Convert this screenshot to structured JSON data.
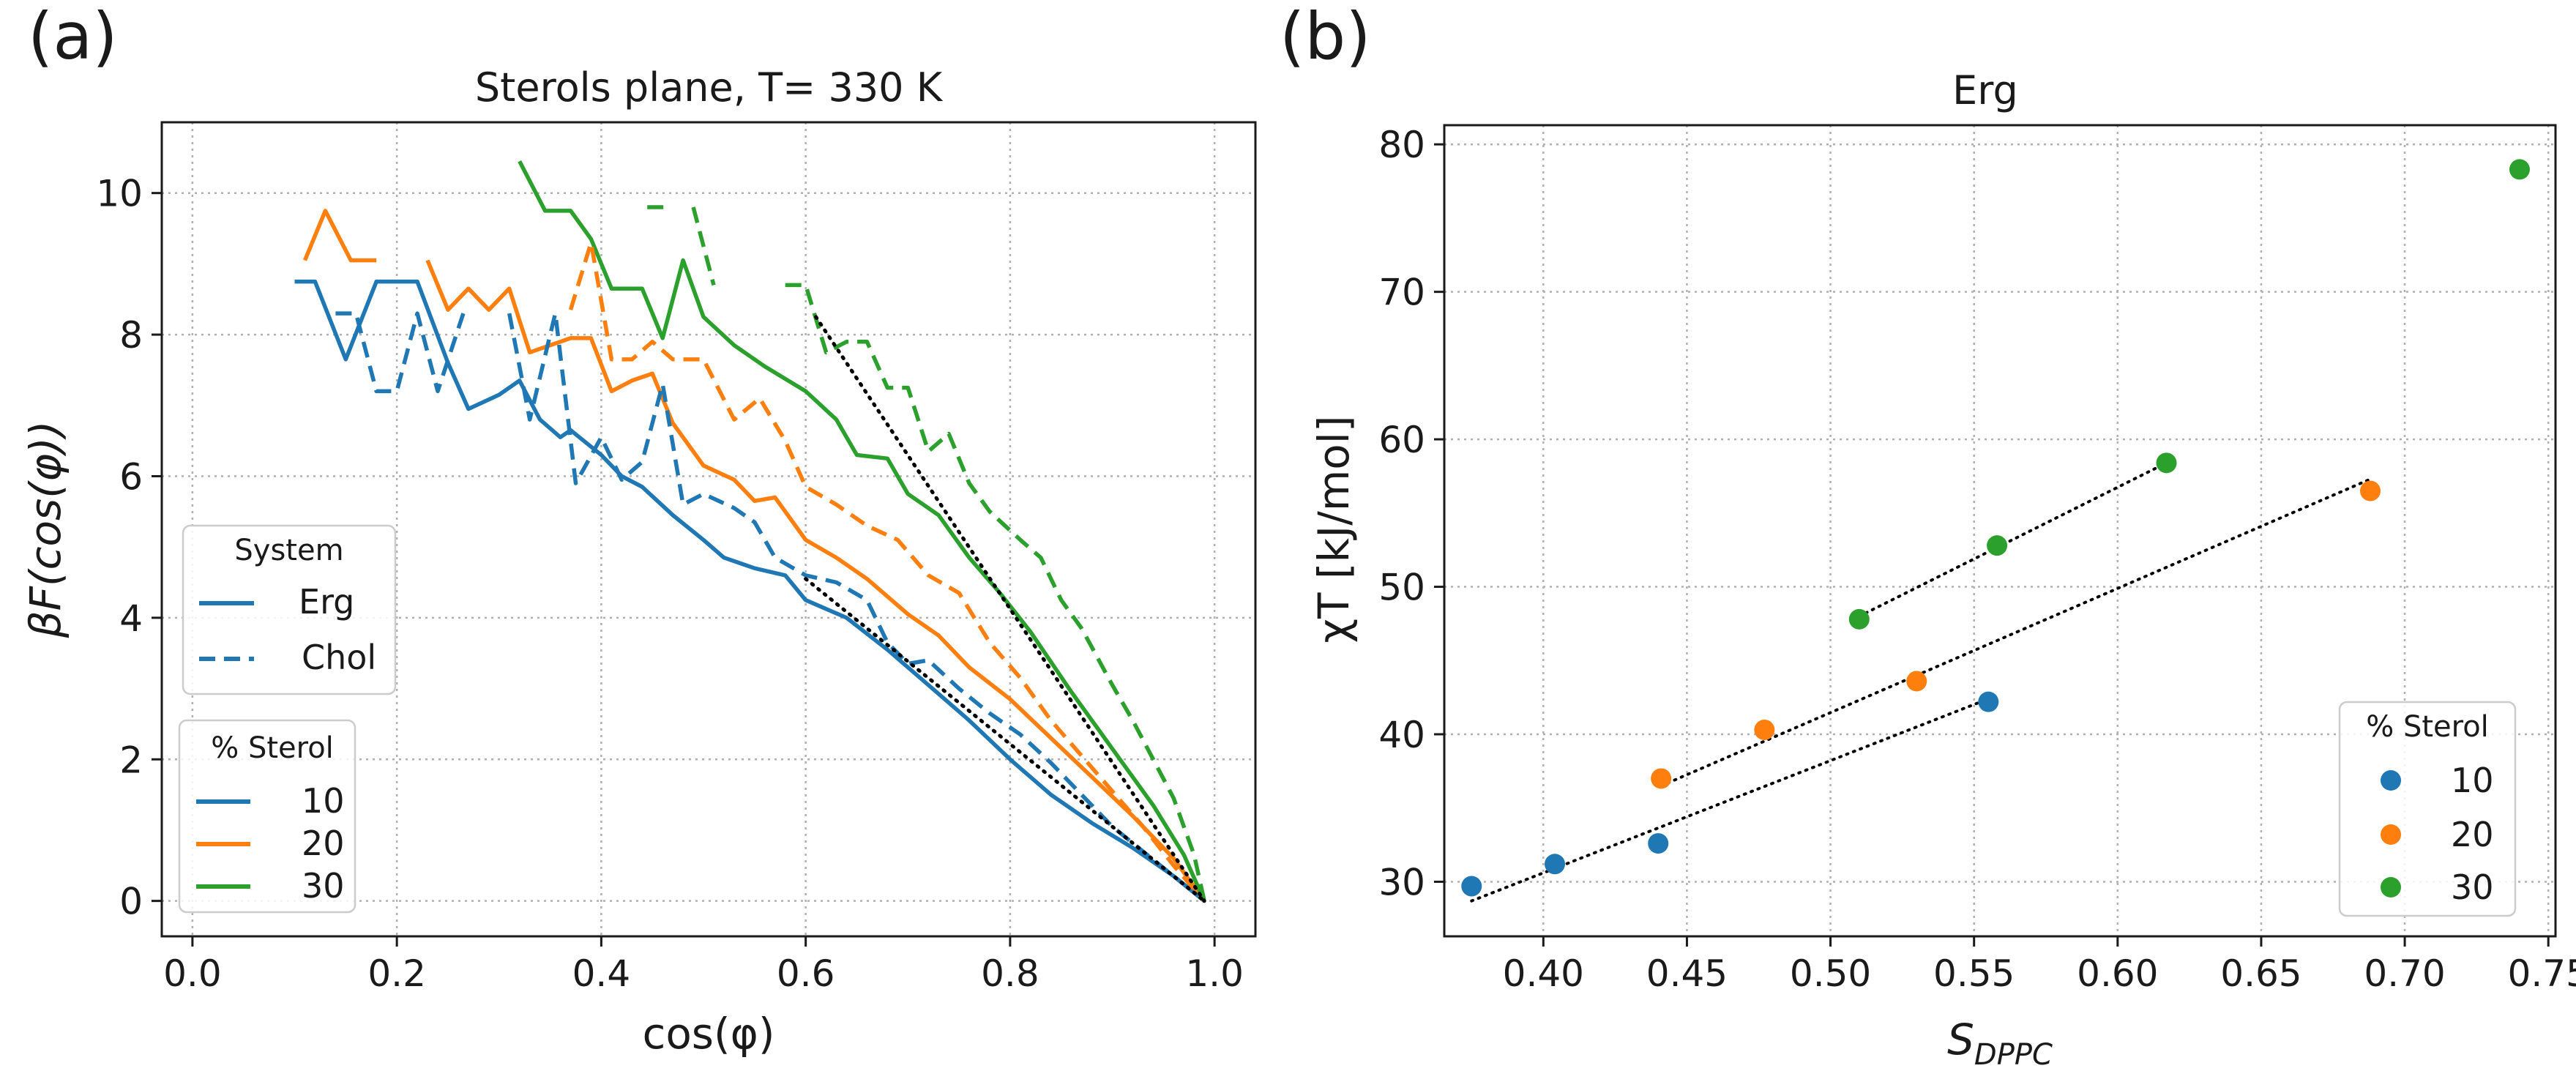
{
  "chart_data": [
    {
      "panel": "(a)",
      "type": "line",
      "title": "Sterols plane, T= 330 K",
      "xlabel": "cos(φ)",
      "ylabel": "βF(cos(φ))",
      "xlim": [
        -0.03,
        1.04
      ],
      "ylim": [
        -0.5,
        11.0
      ],
      "xticks": [
        0.0,
        0.2,
        0.4,
        0.6,
        0.8,
        1.0
      ],
      "xtick_labels": [
        "0.0",
        "0.2",
        "0.4",
        "0.6",
        "0.8",
        "1.0"
      ],
      "yticks": [
        0,
        2,
        4,
        6,
        8,
        10
      ],
      "ytick_labels": [
        "0",
        "2",
        "4",
        "6",
        "8",
        "10"
      ],
      "grid": true,
      "series": [
        {
          "name": "Erg 10",
          "system": "Erg",
          "sterol": "10",
          "color": "#1f77b4",
          "style": "solid",
          "segments": [
            [
              [
                0.1,
                8.75
              ],
              [
                0.12,
                8.75
              ],
              [
                0.15,
                7.65
              ],
              [
                0.18,
                8.75
              ],
              [
                0.22,
                8.75
              ],
              [
                0.25,
                7.6
              ],
              [
                0.27,
                6.95
              ],
              [
                0.3,
                7.15
              ],
              [
                0.32,
                7.35
              ],
              [
                0.34,
                6.8
              ],
              [
                0.36,
                6.55
              ],
              [
                0.37,
                6.65
              ],
              [
                0.4,
                6.3
              ],
              [
                0.42,
                6.0
              ],
              [
                0.44,
                5.85
              ],
              [
                0.47,
                5.45
              ],
              [
                0.5,
                5.1
              ],
              [
                0.52,
                4.85
              ],
              [
                0.55,
                4.7
              ],
              [
                0.58,
                4.6
              ],
              [
                0.6,
                4.25
              ],
              [
                0.64,
                4.0
              ],
              [
                0.68,
                3.55
              ],
              [
                0.72,
                3.05
              ],
              [
                0.76,
                2.55
              ],
              [
                0.8,
                2.0
              ],
              [
                0.84,
                1.5
              ],
              [
                0.88,
                1.1
              ],
              [
                0.92,
                0.75
              ],
              [
                0.96,
                0.35
              ],
              [
                0.99,
                0.0
              ]
            ]
          ]
        },
        {
          "name": "Erg 20",
          "system": "Erg",
          "sterol": "20",
          "color": "#ff7f0e",
          "style": "solid",
          "segments": [
            [
              [
                0.11,
                9.05
              ],
              [
                0.13,
                9.75
              ],
              [
                0.155,
                9.05
              ],
              [
                0.18,
                9.05
              ]
            ],
            [
              [
                0.23,
                9.05
              ],
              [
                0.25,
                8.35
              ],
              [
                0.27,
                8.65
              ],
              [
                0.29,
                8.35
              ],
              [
                0.31,
                8.65
              ],
              [
                0.33,
                7.75
              ],
              [
                0.35,
                7.85
              ],
              [
                0.37,
                7.95
              ],
              [
                0.39,
                7.95
              ],
              [
                0.41,
                7.2
              ],
              [
                0.43,
                7.35
              ],
              [
                0.45,
                7.45
              ],
              [
                0.47,
                6.75
              ],
              [
                0.5,
                6.15
              ],
              [
                0.53,
                5.95
              ],
              [
                0.55,
                5.65
              ],
              [
                0.57,
                5.7
              ],
              [
                0.6,
                5.1
              ],
              [
                0.63,
                4.85
              ],
              [
                0.66,
                4.55
              ],
              [
                0.7,
                4.05
              ],
              [
                0.73,
                3.75
              ],
              [
                0.76,
                3.3
              ],
              [
                0.8,
                2.85
              ],
              [
                0.84,
                2.3
              ],
              [
                0.88,
                1.75
              ],
              [
                0.92,
                1.2
              ],
              [
                0.96,
                0.6
              ],
              [
                0.99,
                0.0
              ]
            ]
          ]
        },
        {
          "name": "Erg 30",
          "system": "Erg",
          "sterol": "30",
          "color": "#2ca02c",
          "style": "solid",
          "segments": [
            [
              [
                0.32,
                10.45
              ],
              [
                0.345,
                9.75
              ],
              [
                0.37,
                9.75
              ],
              [
                0.39,
                9.35
              ],
              [
                0.41,
                8.65
              ],
              [
                0.44,
                8.65
              ],
              [
                0.46,
                7.95
              ],
              [
                0.48,
                9.05
              ],
              [
                0.5,
                8.25
              ],
              [
                0.53,
                7.85
              ],
              [
                0.56,
                7.55
              ],
              [
                0.6,
                7.2
              ],
              [
                0.63,
                6.8
              ],
              [
                0.65,
                6.3
              ],
              [
                0.68,
                6.25
              ],
              [
                0.7,
                5.75
              ],
              [
                0.73,
                5.45
              ],
              [
                0.76,
                4.85
              ],
              [
                0.79,
                4.35
              ],
              [
                0.82,
                3.8
              ],
              [
                0.86,
                2.95
              ],
              [
                0.9,
                2.15
              ],
              [
                0.94,
                1.35
              ],
              [
                0.97,
                0.65
              ],
              [
                0.99,
                0.0
              ]
            ]
          ]
        },
        {
          "name": "Chol 10",
          "system": "Chol",
          "sterol": "10",
          "color": "#1f77b4",
          "style": "dashed",
          "segments": [
            [
              [
                0.14,
                8.3
              ],
              [
                0.16,
                8.3
              ],
              [
                0.18,
                7.2
              ],
              [
                0.2,
                7.2
              ],
              [
                0.22,
                8.3
              ],
              [
                0.24,
                7.2
              ],
              [
                0.265,
                8.3
              ]
            ],
            [
              [
                0.31,
                8.3
              ],
              [
                0.33,
                6.8
              ],
              [
                0.355,
                8.3
              ],
              [
                0.375,
                5.9
              ],
              [
                0.4,
                6.55
              ],
              [
                0.42,
                5.95
              ],
              [
                0.44,
                6.2
              ],
              [
                0.46,
                7.3
              ],
              [
                0.48,
                5.6
              ],
              [
                0.5,
                5.75
              ],
              [
                0.53,
                5.55
              ],
              [
                0.55,
                5.35
              ],
              [
                0.57,
                4.85
              ],
              [
                0.6,
                4.6
              ],
              [
                0.63,
                4.5
              ],
              [
                0.66,
                4.25
              ],
              [
                0.68,
                3.65
              ],
              [
                0.7,
                3.35
              ],
              [
                0.72,
                3.4
              ],
              [
                0.75,
                3.0
              ],
              [
                0.78,
                2.65
              ],
              [
                0.81,
                2.35
              ],
              [
                0.84,
                1.95
              ],
              [
                0.87,
                1.5
              ],
              [
                0.9,
                1.05
              ],
              [
                0.93,
                0.7
              ],
              [
                0.96,
                0.35
              ],
              [
                0.99,
                0.0
              ]
            ]
          ]
        },
        {
          "name": "Chol 20",
          "system": "Chol",
          "sterol": "20",
          "color": "#ff7f0e",
          "style": "dashed",
          "segments": [
            [
              [
                0.37,
                8.35
              ],
              [
                0.39,
                9.3
              ],
              [
                0.41,
                7.65
              ],
              [
                0.43,
                7.65
              ],
              [
                0.45,
                7.9
              ],
              [
                0.47,
                7.65
              ],
              [
                0.5,
                7.65
              ],
              [
                0.53,
                6.8
              ],
              [
                0.555,
                7.1
              ],
              [
                0.58,
                6.5
              ],
              [
                0.6,
                5.85
              ],
              [
                0.63,
                5.6
              ],
              [
                0.66,
                5.3
              ],
              [
                0.69,
                5.1
              ],
              [
                0.72,
                4.6
              ],
              [
                0.75,
                4.35
              ],
              [
                0.78,
                3.65
              ],
              [
                0.81,
                3.15
              ],
              [
                0.84,
                2.55
              ],
              [
                0.87,
                2.05
              ],
              [
                0.9,
                1.55
              ],
              [
                0.93,
                1.05
              ],
              [
                0.96,
                0.5
              ],
              [
                0.99,
                0.0
              ]
            ]
          ]
        },
        {
          "name": "Chol 30",
          "system": "Chol",
          "sterol": "30",
          "color": "#2ca02c",
          "style": "dashed",
          "segments": [
            [
              [
                0.445,
                9.8
              ],
              [
                0.465,
                9.8
              ]
            ],
            [
              [
                0.49,
                9.8
              ],
              [
                0.51,
                8.7
              ]
            ],
            [
              [
                0.58,
                8.7
              ],
              [
                0.6,
                8.7
              ],
              [
                0.62,
                7.75
              ],
              [
                0.64,
                7.9
              ],
              [
                0.66,
                7.9
              ],
              [
                0.68,
                7.25
              ],
              [
                0.7,
                7.25
              ],
              [
                0.72,
                6.35
              ],
              [
                0.74,
                6.6
              ],
              [
                0.76,
                5.9
              ],
              [
                0.78,
                5.5
              ],
              [
                0.81,
                5.1
              ],
              [
                0.83,
                4.85
              ],
              [
                0.85,
                4.25
              ],
              [
                0.87,
                3.85
              ],
              [
                0.9,
                3.05
              ],
              [
                0.92,
                2.55
              ],
              [
                0.94,
                2.0
              ],
              [
                0.96,
                1.45
              ],
              [
                0.98,
                0.65
              ],
              [
                0.99,
                0.0
              ]
            ]
          ]
        },
        {
          "name": "fit-upper",
          "system": "fit",
          "sterol": "",
          "color": "#000000",
          "style": "dotted",
          "segments": [
            [
              [
                0.61,
                8.25
              ],
              [
                0.99,
                0.0
              ]
            ]
          ]
        },
        {
          "name": "fit-lower",
          "system": "fit",
          "sterol": "",
          "color": "#000000",
          "style": "dotted",
          "segments": [
            [
              [
                0.6,
                4.55
              ],
              [
                0.99,
                0.0
              ]
            ]
          ]
        }
      ],
      "legends": [
        {
          "title": "System",
          "entries": [
            {
              "label": "Erg",
              "style": "solid",
              "color": "#1f77b4"
            },
            {
              "label": "Chol",
              "style": "dashed",
              "color": "#1f77b4"
            }
          ]
        },
        {
          "title": "% Sterol",
          "entries": [
            {
              "label": "10",
              "style": "solid",
              "color": "#1f77b4"
            },
            {
              "label": "20",
              "style": "solid",
              "color": "#ff7f0e"
            },
            {
              "label": "30",
              "style": "solid",
              "color": "#2ca02c"
            }
          ]
        }
      ]
    },
    {
      "panel": "(b)",
      "type": "scatter",
      "title": "Erg",
      "xlabel": "S",
      "xlabel_sub": "DPPC",
      "ylabel": "χT [kJ/mol]",
      "xlim": [
        0.3655,
        0.7525
      ],
      "ylim": [
        26.3,
        81.3
      ],
      "xticks": [
        0.4,
        0.45,
        0.5,
        0.55,
        0.6,
        0.65,
        0.7,
        0.75
      ],
      "xtick_labels": [
        "0.40",
        "0.45",
        "0.50",
        "0.55",
        "0.60",
        "0.65",
        "0.70",
        "0.75"
      ],
      "yticks": [
        30,
        40,
        50,
        60,
        70,
        80
      ],
      "ytick_labels": [
        "30",
        "40",
        "50",
        "60",
        "70",
        "80"
      ],
      "grid": true,
      "series": [
        {
          "name": "10",
          "color": "#1f77b4",
          "points": [
            [
              0.375,
              29.7
            ],
            [
              0.404,
              31.2
            ],
            [
              0.44,
              32.6
            ],
            [
              0.555,
              42.2
            ]
          ]
        },
        {
          "name": "20",
          "color": "#ff7f0e",
          "points": [
            [
              0.441,
              37.0
            ],
            [
              0.477,
              40.3
            ],
            [
              0.53,
              43.6
            ],
            [
              0.688,
              56.5
            ]
          ]
        },
        {
          "name": "30",
          "color": "#2ca02c",
          "points": [
            [
              0.51,
              47.8
            ],
            [
              0.558,
              52.8
            ],
            [
              0.617,
              58.4
            ],
            [
              0.74,
              78.3
            ]
          ]
        }
      ],
      "fits": [
        {
          "name": "fit-10",
          "color": "#000000",
          "points": [
            [
              0.375,
              28.7
            ],
            [
              0.555,
              42.4
            ]
          ]
        },
        {
          "name": "fit-20",
          "color": "#000000",
          "points": [
            [
              0.441,
              36.5
            ],
            [
              0.688,
              57.3
            ]
          ]
        },
        {
          "name": "fit-30",
          "color": "#000000",
          "points": [
            [
              0.51,
              48.0
            ],
            [
              0.617,
              58.4
            ]
          ]
        }
      ],
      "legend": {
        "title": "% Sterol",
        "entries": [
          {
            "label": "10",
            "color": "#1f77b4"
          },
          {
            "label": "20",
            "color": "#ff7f0e"
          },
          {
            "label": "30",
            "color": "#2ca02c"
          }
        ]
      }
    }
  ]
}
